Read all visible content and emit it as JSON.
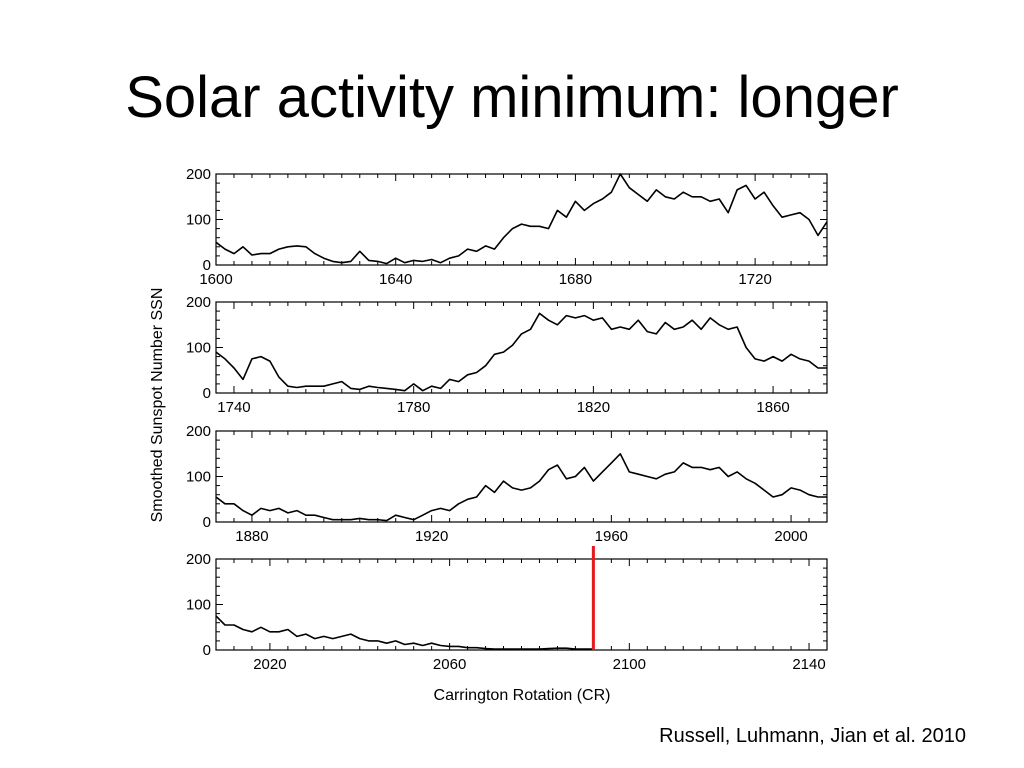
{
  "slide": {
    "title": "Solar activity minimum: longer",
    "citation": "Russell, Luhmann, Jian et al. 2010"
  },
  "colors": {
    "line": "#000000",
    "marker": "#e41a1c",
    "frame": "#000000"
  },
  "chart_data": {
    "type": "line",
    "xlabel": "Carrington Rotation (CR)",
    "ylabel": "Smoothed Sunspot Number SSN",
    "ylim": [
      0,
      200
    ],
    "yticks": [
      0,
      100,
      200
    ],
    "grid": false,
    "marker_line": {
      "x": 2092,
      "color": "#e41a1c"
    },
    "panels": [
      {
        "xlim": [
          1600,
          1736
        ],
        "xticks": [
          1600,
          1640,
          1680,
          1720
        ],
        "x": [
          1600,
          1602,
          1604,
          1606,
          1608,
          1610,
          1612,
          1614,
          1616,
          1618,
          1620,
          1622,
          1624,
          1626,
          1628,
          1630,
          1632,
          1634,
          1636,
          1638,
          1640,
          1642,
          1644,
          1646,
          1648,
          1650,
          1652,
          1654,
          1656,
          1658,
          1660,
          1662,
          1664,
          1666,
          1668,
          1670,
          1672,
          1674,
          1676,
          1678,
          1680,
          1682,
          1684,
          1686,
          1688,
          1690,
          1692,
          1694,
          1696,
          1698,
          1700,
          1702,
          1704,
          1706,
          1708,
          1710,
          1712,
          1714,
          1716,
          1718,
          1720,
          1722,
          1724,
          1726,
          1728,
          1730,
          1732,
          1734,
          1736
        ],
        "y": [
          50,
          35,
          25,
          40,
          22,
          25,
          25,
          35,
          40,
          42,
          40,
          25,
          15,
          8,
          5,
          8,
          30,
          10,
          8,
          3,
          15,
          5,
          10,
          8,
          12,
          5,
          15,
          20,
          35,
          30,
          42,
          35,
          60,
          80,
          90,
          85,
          85,
          80,
          120,
          105,
          140,
          120,
          135,
          145,
          160,
          200,
          170,
          155,
          140,
          165,
          150,
          145,
          160,
          150,
          150,
          140,
          145,
          115,
          165,
          175,
          145,
          160,
          130,
          105,
          110,
          115,
          100,
          65,
          95
        ],
        "panel_name": "panel-1"
      },
      {
        "xlim": [
          1736,
          1872
        ],
        "xticks": [
          1740,
          1780,
          1820,
          1860
        ],
        "x": [
          1736,
          1738,
          1740,
          1742,
          1744,
          1746,
          1748,
          1750,
          1752,
          1754,
          1756,
          1758,
          1760,
          1762,
          1764,
          1766,
          1768,
          1770,
          1772,
          1774,
          1776,
          1778,
          1780,
          1782,
          1784,
          1786,
          1788,
          1790,
          1792,
          1794,
          1796,
          1798,
          1800,
          1802,
          1804,
          1806,
          1808,
          1810,
          1812,
          1814,
          1816,
          1818,
          1820,
          1822,
          1824,
          1826,
          1828,
          1830,
          1832,
          1834,
          1836,
          1838,
          1840,
          1842,
          1844,
          1846,
          1848,
          1850,
          1852,
          1854,
          1856,
          1858,
          1860,
          1862,
          1864,
          1866,
          1868,
          1870,
          1872
        ],
        "y": [
          90,
          75,
          55,
          30,
          75,
          80,
          70,
          35,
          15,
          12,
          15,
          15,
          15,
          20,
          25,
          10,
          8,
          15,
          12,
          10,
          8,
          5,
          20,
          5,
          15,
          10,
          30,
          25,
          40,
          45,
          60,
          85,
          90,
          105,
          130,
          140,
          175,
          160,
          150,
          170,
          165,
          170,
          160,
          165,
          140,
          145,
          140,
          160,
          135,
          130,
          155,
          140,
          145,
          160,
          140,
          165,
          150,
          140,
          145,
          100,
          75,
          70,
          80,
          70,
          85,
          75,
          70,
          55,
          55
        ],
        "panel_name": "panel-2"
      },
      {
        "xlim": [
          1872,
          2008
        ],
        "xticks": [
          1880,
          1920,
          1960,
          2000
        ],
        "x": [
          1872,
          1874,
          1876,
          1878,
          1880,
          1882,
          1884,
          1886,
          1888,
          1890,
          1892,
          1894,
          1896,
          1898,
          1900,
          1902,
          1904,
          1906,
          1908,
          1910,
          1912,
          1914,
          1916,
          1918,
          1920,
          1922,
          1924,
          1926,
          1928,
          1930,
          1932,
          1934,
          1936,
          1938,
          1940,
          1942,
          1944,
          1946,
          1948,
          1950,
          1952,
          1954,
          1956,
          1958,
          1960,
          1962,
          1964,
          1966,
          1968,
          1970,
          1972,
          1974,
          1976,
          1978,
          1980,
          1982,
          1984,
          1986,
          1988,
          1990,
          1992,
          1994,
          1996,
          1998,
          2000,
          2002,
          2004,
          2006,
          2008
        ],
        "y": [
          55,
          40,
          40,
          25,
          15,
          30,
          25,
          30,
          20,
          25,
          15,
          15,
          10,
          5,
          5,
          5,
          8,
          5,
          5,
          3,
          15,
          10,
          5,
          15,
          25,
          30,
          25,
          40,
          50,
          55,
          80,
          65,
          90,
          75,
          70,
          75,
          90,
          115,
          125,
          95,
          100,
          120,
          90,
          110,
          130,
          150,
          110,
          105,
          100,
          95,
          105,
          110,
          130,
          120,
          120,
          115,
          120,
          100,
          110,
          95,
          85,
          70,
          55,
          60,
          75,
          70,
          60,
          55,
          55
        ],
        "panel_name": "panel-3"
      },
      {
        "xlim": [
          2008,
          2144
        ],
        "xticks": [
          2020,
          2060,
          2100,
          2140
        ],
        "x": [
          2008,
          2010,
          2012,
          2014,
          2016,
          2018,
          2020,
          2022,
          2024,
          2026,
          2028,
          2030,
          2032,
          2034,
          2036,
          2038,
          2040,
          2042,
          2044,
          2046,
          2048,
          2050,
          2052,
          2054,
          2056,
          2058,
          2060,
          2062,
          2064,
          2066,
          2068,
          2070,
          2072,
          2074,
          2076,
          2078,
          2080,
          2082,
          2084,
          2086,
          2088,
          2090,
          2092
        ],
        "y": [
          75,
          55,
          55,
          45,
          40,
          50,
          40,
          40,
          45,
          30,
          35,
          25,
          30,
          25,
          30,
          35,
          25,
          20,
          20,
          15,
          20,
          12,
          15,
          10,
          15,
          10,
          8,
          8,
          5,
          5,
          3,
          2,
          2,
          2,
          2,
          2,
          2,
          3,
          4,
          4,
          2,
          2,
          2
        ],
        "panel_name": "panel-4"
      }
    ]
  }
}
